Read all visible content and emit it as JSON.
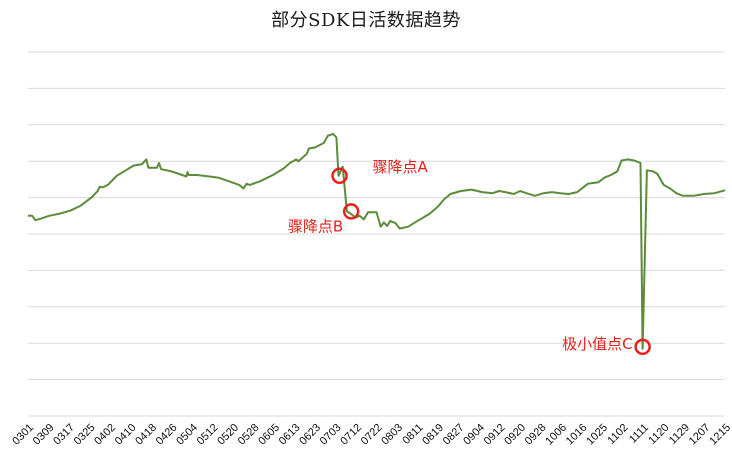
{
  "chart_data": {
    "type": "line",
    "title": "部分SDK日活数据趋势",
    "xlabel": "",
    "ylabel": "",
    "y_axis_labels_visible": false,
    "ylim": [
      0,
      10
    ],
    "grid": true,
    "grid_lines": 11,
    "line_color": "#5b8c3a",
    "annotation_color": "#e8201a",
    "x_tick_labels": [
      "0301",
      "0309",
      "0317",
      "0325",
      "0402",
      "0410",
      "0418",
      "0426",
      "0504",
      "0512",
      "0520",
      "0528",
      "0605",
      "0613",
      "0623",
      "0703",
      "0712",
      "0722",
      "0803",
      "0811",
      "0819",
      "0827",
      "0904",
      "0912",
      "0920",
      "0928",
      "1006",
      "1016",
      "1025",
      "1102",
      "1111",
      "1120",
      "1129",
      "1207",
      "1215"
    ],
    "series": [
      {
        "name": "SDK日活",
        "points": [
          [
            0.0,
            5.5
          ],
          [
            0.2,
            5.5
          ],
          [
            0.35,
            5.38
          ],
          [
            0.6,
            5.42
          ],
          [
            1.0,
            5.5
          ],
          [
            1.5,
            5.56
          ],
          [
            2.0,
            5.64
          ],
          [
            2.5,
            5.78
          ],
          [
            3.0,
            6.0
          ],
          [
            3.3,
            6.18
          ],
          [
            3.4,
            6.3
          ],
          [
            3.55,
            6.28
          ],
          [
            3.8,
            6.36
          ],
          [
            4.2,
            6.6
          ],
          [
            4.6,
            6.74
          ],
          [
            5.0,
            6.88
          ],
          [
            5.4,
            6.92
          ],
          [
            5.6,
            7.05
          ],
          [
            5.7,
            6.82
          ],
          [
            6.1,
            6.82
          ],
          [
            6.2,
            6.95
          ],
          [
            6.3,
            6.78
          ],
          [
            6.8,
            6.72
          ],
          [
            7.3,
            6.62
          ],
          [
            7.5,
            6.58
          ],
          [
            7.55,
            6.7
          ],
          [
            7.6,
            6.62
          ],
          [
            8.0,
            6.62
          ],
          [
            8.6,
            6.58
          ],
          [
            9.0,
            6.55
          ],
          [
            9.5,
            6.45
          ],
          [
            10.0,
            6.35
          ],
          [
            10.2,
            6.25
          ],
          [
            10.35,
            6.38
          ],
          [
            10.5,
            6.35
          ],
          [
            11.0,
            6.45
          ],
          [
            11.6,
            6.62
          ],
          [
            12.1,
            6.8
          ],
          [
            12.4,
            6.95
          ],
          [
            12.7,
            7.05
          ],
          [
            12.8,
            7.0
          ],
          [
            13.2,
            7.2
          ],
          [
            13.3,
            7.35
          ],
          [
            13.6,
            7.38
          ],
          [
            14.0,
            7.5
          ],
          [
            14.2,
            7.7
          ],
          [
            14.45,
            7.75
          ],
          [
            14.6,
            7.65
          ],
          [
            14.7,
            6.6
          ],
          [
            14.9,
            6.85
          ],
          [
            15.1,
            5.62
          ],
          [
            15.3,
            5.55
          ],
          [
            15.5,
            5.45
          ],
          [
            15.7,
            5.5
          ],
          [
            15.9,
            5.4
          ],
          [
            16.1,
            5.6
          ],
          [
            16.5,
            5.6
          ],
          [
            16.7,
            5.2
          ],
          [
            16.85,
            5.32
          ],
          [
            17.0,
            5.22
          ],
          [
            17.15,
            5.36
          ],
          [
            17.4,
            5.3
          ],
          [
            17.6,
            5.15
          ],
          [
            18.0,
            5.2
          ],
          [
            18.5,
            5.38
          ],
          [
            19.0,
            5.55
          ],
          [
            19.4,
            5.75
          ],
          [
            19.7,
            5.95
          ],
          [
            20.0,
            6.1
          ],
          [
            20.5,
            6.18
          ],
          [
            21.0,
            6.22
          ],
          [
            21.5,
            6.15
          ],
          [
            22.0,
            6.12
          ],
          [
            22.3,
            6.18
          ],
          [
            22.6,
            6.15
          ],
          [
            23.0,
            6.1
          ],
          [
            23.3,
            6.18
          ],
          [
            23.6,
            6.12
          ],
          [
            24.0,
            6.05
          ],
          [
            24.4,
            6.12
          ],
          [
            24.8,
            6.15
          ],
          [
            25.2,
            6.12
          ],
          [
            25.6,
            6.1
          ],
          [
            26.0,
            6.15
          ],
          [
            26.5,
            6.38
          ],
          [
            27.0,
            6.42
          ],
          [
            27.3,
            6.55
          ],
          [
            27.6,
            6.62
          ],
          [
            27.9,
            6.72
          ],
          [
            28.1,
            7.02
          ],
          [
            28.4,
            7.05
          ],
          [
            28.7,
            7.02
          ],
          [
            29.0,
            6.95
          ],
          [
            29.1,
            1.85
          ],
          [
            29.3,
            6.75
          ],
          [
            29.6,
            6.72
          ],
          [
            29.8,
            6.65
          ],
          [
            30.1,
            6.35
          ],
          [
            30.4,
            6.25
          ],
          [
            30.7,
            6.12
          ],
          [
            31.0,
            6.05
          ],
          [
            31.5,
            6.05
          ],
          [
            32.0,
            6.1
          ],
          [
            32.5,
            6.12
          ],
          [
            33.0,
            6.2
          ]
        ]
      }
    ],
    "annotations": [
      {
        "label": "骤降点A",
        "x": 14.75,
        "y": 6.6
      },
      {
        "label": "骤降点B",
        "x": 15.3,
        "y": 5.62
      },
      {
        "label": "极小值点C",
        "x": 29.1,
        "y": 1.9
      }
    ]
  }
}
